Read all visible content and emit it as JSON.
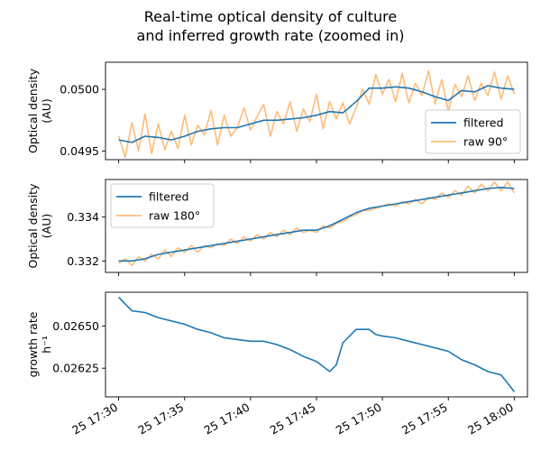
{
  "title_line1": "Real-time optical density of culture",
  "title_line2": "and inferred growth rate (zoomed in)",
  "colors": {
    "filtered": "#1f77b4",
    "raw": "#ffbb78",
    "frame": "#000000"
  },
  "chart_data": [
    {
      "type": "line",
      "ylabel": [
        "Optical density",
        "(AU)"
      ],
      "ylim": [
        0.04943,
        0.05022
      ],
      "xlim": [
        "25 17:29",
        "25 18:01"
      ],
      "yticks": [
        {
          "value": 0.0495,
          "label": "0.0495"
        },
        {
          "value": 0.05,
          "label": "0.0500"
        }
      ],
      "legend": {
        "position": "lower-right",
        "labels": [
          "filtered",
          "raw 90°"
        ]
      },
      "series": [
        {
          "name": "filtered",
          "color": "#1f77b4",
          "x": [
            "17:30",
            "17:31",
            "17:32",
            "17:33",
            "17:34",
            "17:35",
            "17:36",
            "17:37",
            "17:38",
            "17:39",
            "17:40",
            "17:41",
            "17:42",
            "17:43",
            "17:44",
            "17:45",
            "17:46",
            "17:47",
            "17:48",
            "17:49",
            "17:50",
            "17:51",
            "17:52",
            "17:53",
            "17:54",
            "17:55",
            "17:56",
            "17:57",
            "17:58",
            "17:59",
            "18:00"
          ],
          "values": [
            0.04959,
            0.04957,
            0.04962,
            0.04961,
            0.04959,
            0.04962,
            0.04966,
            0.04968,
            0.04969,
            0.04969,
            0.04972,
            0.04975,
            0.04975,
            0.04976,
            0.04977,
            0.04979,
            0.04982,
            0.04981,
            0.0499,
            0.05001,
            0.05001,
            0.05002,
            0.05001,
            0.04998,
            0.04994,
            0.04991,
            0.04999,
            0.04998,
            0.05003,
            0.05001,
            0.05
          ]
        },
        {
          "name": "raw 90°",
          "color": "#ffbb78",
          "x": [
            "17:30",
            "17:30:30",
            "17:31",
            "17:31:30",
            "17:32",
            "17:32:30",
            "17:33",
            "17:33:30",
            "17:34",
            "17:34:30",
            "17:35",
            "17:35:30",
            "17:36",
            "17:36:30",
            "17:37",
            "17:37:30",
            "17:38",
            "17:38:30",
            "17:39",
            "17:39:30",
            "17:40",
            "17:40:30",
            "17:41",
            "17:41:30",
            "17:42",
            "17:42:30",
            "17:43",
            "17:43:30",
            "17:44",
            "17:44:30",
            "17:45",
            "17:45:30",
            "17:46",
            "17:46:30",
            "17:47",
            "17:47:30",
            "17:48",
            "17:48:30",
            "17:49",
            "17:49:30",
            "17:50",
            "17:50:30",
            "17:51",
            "17:51:30",
            "17:52",
            "17:52:30",
            "17:53",
            "17:53:30",
            "17:54",
            "17:54:30",
            "17:55",
            "17:55:30",
            "17:56",
            "17:56:30",
            "17:57",
            "17:57:30",
            "17:58",
            "17:58:30",
            "17:59",
            "17:59:30",
            "18:00"
          ],
          "values": [
            0.04962,
            0.04945,
            0.04973,
            0.0495,
            0.0498,
            0.04948,
            0.04972,
            0.04951,
            0.04966,
            0.04952,
            0.04979,
            0.04955,
            0.04971,
            0.04963,
            0.04983,
            0.04955,
            0.04979,
            0.04962,
            0.04969,
            0.04985,
            0.04967,
            0.04978,
            0.04988,
            0.04962,
            0.04982,
            0.04972,
            0.0499,
            0.04966,
            0.04984,
            0.04974,
            0.04996,
            0.04968,
            0.0499,
            0.04976,
            0.04989,
            0.04972,
            0.04985,
            0.05,
            0.04988,
            0.05012,
            0.04996,
            0.05008,
            0.0499,
            0.05013,
            0.04989,
            0.05005,
            0.04995,
            0.05015,
            0.04988,
            0.05008,
            0.04982,
            0.05004,
            0.04994,
            0.05011,
            0.04991,
            0.05005,
            0.04995,
            0.05014,
            0.04992,
            0.05011,
            0.04996
          ]
        }
      ]
    },
    {
      "type": "line",
      "ylabel": [
        "Optical density",
        "(AU)"
      ],
      "ylim": [
        0.33148,
        0.33571
      ],
      "xlim": [
        "25 17:29",
        "25 18:01"
      ],
      "yticks": [
        {
          "value": 0.332,
          "label": "0.332"
        },
        {
          "value": 0.334,
          "label": "0.334"
        }
      ],
      "legend": {
        "position": "upper-left",
        "labels": [
          "filtered",
          "raw 180°"
        ]
      },
      "series": [
        {
          "name": "filtered",
          "color": "#1f77b4",
          "x": [
            "17:30",
            "17:31",
            "17:32",
            "17:33",
            "17:34",
            "17:35",
            "17:36",
            "17:37",
            "17:38",
            "17:39",
            "17:40",
            "17:41",
            "17:42",
            "17:43",
            "17:44",
            "17:45",
            "17:46",
            "17:47",
            "17:48",
            "17:49",
            "17:50",
            "17:51",
            "17:52",
            "17:53",
            "17:54",
            "17:55",
            "17:56",
            "17:57",
            "17:58",
            "17:59",
            "18:00"
          ],
          "values": [
            0.332,
            0.332,
            0.3321,
            0.3323,
            0.3324,
            0.3325,
            0.3326,
            0.3327,
            0.3328,
            0.3329,
            0.333,
            0.3331,
            0.3332,
            0.3333,
            0.3334,
            0.3334,
            0.3336,
            0.3339,
            0.3342,
            0.3344,
            0.3345,
            0.3346,
            0.3347,
            0.3348,
            0.3349,
            0.335,
            0.3351,
            0.3352,
            0.3353,
            0.33535,
            0.3353
          ]
        },
        {
          "name": "raw 180°",
          "color": "#ffbb78",
          "x": [
            "17:30",
            "17:30:30",
            "17:31",
            "17:31:30",
            "17:32",
            "17:32:30",
            "17:33",
            "17:33:30",
            "17:34",
            "17:34:30",
            "17:35",
            "17:35:30",
            "17:36",
            "17:36:30",
            "17:37",
            "17:37:30",
            "17:38",
            "17:38:30",
            "17:39",
            "17:39:30",
            "17:40",
            "17:40:30",
            "17:41",
            "17:41:30",
            "17:42",
            "17:42:30",
            "17:43",
            "17:43:30",
            "17:44",
            "17:44:30",
            "17:45",
            "17:45:30",
            "17:46",
            "17:46:30",
            "17:47",
            "17:47:30",
            "17:48",
            "17:48:30",
            "17:49",
            "17:49:30",
            "17:50",
            "17:50:30",
            "17:51",
            "17:51:30",
            "17:52",
            "17:52:30",
            "17:53",
            "17:53:30",
            "17:54",
            "17:54:30",
            "17:55",
            "17:55:30",
            "17:56",
            "17:56:30",
            "17:57",
            "17:57:30",
            "17:58",
            "17:58:30",
            "17:59",
            "17:59:30",
            "18:00"
          ],
          "values": [
            0.3319,
            0.3321,
            0.3318,
            0.3322,
            0.332,
            0.3323,
            0.3321,
            0.3325,
            0.3322,
            0.3326,
            0.3324,
            0.3327,
            0.3324,
            0.3327,
            0.3326,
            0.3328,
            0.3327,
            0.333,
            0.3328,
            0.3331,
            0.3329,
            0.3332,
            0.333,
            0.3333,
            0.3331,
            0.3334,
            0.3332,
            0.3335,
            0.3333,
            0.3334,
            0.3333,
            0.3336,
            0.3335,
            0.3337,
            0.3338,
            0.334,
            0.3341,
            0.3343,
            0.3343,
            0.3344,
            0.3345,
            0.3346,
            0.3345,
            0.3347,
            0.3346,
            0.3348,
            0.3346,
            0.3349,
            0.3348,
            0.3351,
            0.3349,
            0.3352,
            0.335,
            0.3354,
            0.3351,
            0.3355,
            0.3352,
            0.3356,
            0.3352,
            0.3356,
            0.3351
          ]
        }
      ]
    },
    {
      "type": "line",
      "ylabel": [
        "growth rate",
        "h⁻¹"
      ],
      "ylim": [
        0.02608,
        0.0267
      ],
      "xlim": [
        "25 17:29",
        "25 18:01"
      ],
      "yticks": [
        {
          "value": 0.02625,
          "label": "0.02625"
        },
        {
          "value": 0.0265,
          "label": "0.02650"
        }
      ],
      "xticks": [
        {
          "value": "17:30",
          "label": "25 17:30"
        },
        {
          "value": "17:35",
          "label": "25 17:35"
        },
        {
          "value": "17:40",
          "label": "25 17:40"
        },
        {
          "value": "17:45",
          "label": "25 17:45"
        },
        {
          "value": "17:50",
          "label": "25 17:50"
        },
        {
          "value": "17:55",
          "label": "25 17:55"
        },
        {
          "value": "18:00",
          "label": "25 18:00"
        }
      ],
      "series": [
        {
          "name": "",
          "color": "#1f77b4",
          "x": [
            "17:30",
            "17:30:30",
            "17:31",
            "17:32",
            "17:33",
            "17:34",
            "17:35",
            "17:36",
            "17:37",
            "17:38",
            "17:39",
            "17:40",
            "17:41",
            "17:42",
            "17:43",
            "17:44",
            "17:45",
            "17:45:30",
            "17:46",
            "17:46:30",
            "17:47",
            "17:48",
            "17:49",
            "17:49:30",
            "17:50",
            "17:51",
            "17:52",
            "17:53",
            "17:54",
            "17:55",
            "17:56",
            "17:57",
            "17:58",
            "17:59",
            "17:59:30",
            "18:00"
          ],
          "values": [
            0.02667,
            0.02663,
            0.02659,
            0.02658,
            0.02655,
            0.02653,
            0.02651,
            0.02648,
            0.02646,
            0.02643,
            0.02642,
            0.02641,
            0.02641,
            0.02639,
            0.02636,
            0.02632,
            0.02629,
            0.02626,
            0.02623,
            0.02627,
            0.0264,
            0.02648,
            0.02648,
            0.02645,
            0.02644,
            0.02643,
            0.02641,
            0.02639,
            0.02637,
            0.02635,
            0.0263,
            0.02627,
            0.02623,
            0.02621,
            0.02616,
            0.02611
          ]
        }
      ]
    }
  ]
}
